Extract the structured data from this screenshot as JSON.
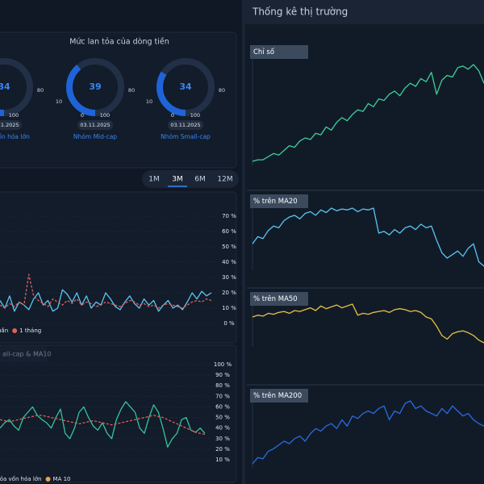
{
  "left": {
    "flow_panel": {
      "title": "Mức lan tỏa của dòng tiền",
      "gauges": [
        {
          "value": 34,
          "low": 10,
          "high": 80,
          "min": 0,
          "max": 100,
          "date": "03.11.2025",
          "name": "hóm Vốn hóa lớn"
        },
        {
          "value": 39,
          "low": 10,
          "high": 80,
          "min": 0,
          "max": 100,
          "date": "03.11.2025",
          "name": "Nhóm Mid-cap"
        },
        {
          "value": 34,
          "low": 10,
          "high": 80,
          "min": 0,
          "max": 100,
          "date": "03.11.2025",
          "name": "Nhóm Small-cap"
        }
      ]
    },
    "periods": {
      "options": [
        "1M",
        "3M",
        "6M",
        "12M"
      ],
      "active": 1
    },
    "breadth_chart": {
      "type": "line",
      "series": [
        {
          "name": "uần",
          "color": "#5cc6f2",
          "dashed": false,
          "values": [
            15,
            10,
            18,
            8,
            14,
            12,
            9,
            16,
            20,
            12,
            15,
            8,
            10,
            22,
            19,
            14,
            20,
            12,
            18,
            10,
            14,
            12,
            20,
            16,
            11,
            9,
            14,
            18,
            13,
            10,
            16,
            12,
            15,
            8,
            12,
            15,
            10,
            12,
            9,
            14,
            20,
            16,
            21,
            18,
            20
          ]
        },
        {
          "name": "1 tháng",
          "color": "#e0605a",
          "dashed": true,
          "values": [
            12,
            10,
            13,
            11,
            14,
            12,
            32,
            18,
            15,
            13,
            11,
            16,
            14,
            12,
            15,
            13,
            16,
            12,
            14,
            13,
            11,
            12,
            14,
            13,
            12,
            11,
            13,
            15,
            14,
            12,
            13,
            11,
            12,
            10,
            12,
            13,
            12,
            11,
            10,
            12,
            14,
            15,
            14,
            16,
            15
          ]
        }
      ],
      "ylim": [
        0,
        70
      ],
      "yticks": [
        {
          "value": 0,
          "label": "0 %"
        },
        {
          "value": 10,
          "label": "10 %"
        },
        {
          "value": 20,
          "label": "20 %"
        },
        {
          "value": 30,
          "label": "30 %"
        },
        {
          "value": 40,
          "label": "40 %"
        },
        {
          "value": 50,
          "label": "50 %"
        },
        {
          "value": 60,
          "label": "60 %"
        },
        {
          "value": 70,
          "label": "70 %"
        }
      ],
      "grid": true
    },
    "cap_chart": {
      "tab": "all-cap & MA10",
      "type": "line",
      "series": [
        {
          "name": "tỏa vốn hóa lớn",
          "color": "#35c49a",
          "dashed": false,
          "values": [
            40,
            45,
            48,
            42,
            38,
            50,
            55,
            60,
            52,
            48,
            45,
            40,
            50,
            58,
            35,
            30,
            40,
            55,
            60,
            50,
            42,
            38,
            45,
            35,
            30,
            48,
            58,
            65,
            60,
            55,
            40,
            35,
            50,
            62,
            55,
            40,
            22,
            30,
            35,
            48,
            50,
            38,
            36,
            40,
            35
          ]
        },
        {
          "name": "MA 10",
          "color": "#e0605a",
          "dot_color": "#f0a050",
          "dashed": true,
          "values": [
            48,
            47,
            46,
            47,
            48,
            49,
            50,
            51,
            52,
            52,
            51,
            50,
            49,
            48,
            47,
            46,
            45,
            44,
            45,
            46,
            47,
            46,
            45,
            44,
            43,
            44,
            45,
            46,
            47,
            48,
            49,
            50,
            51,
            52,
            51,
            50,
            48,
            46,
            44,
            42,
            40,
            38,
            36,
            35,
            34
          ]
        }
      ],
      "ylim": [
        10,
        100
      ],
      "yticks": [
        {
          "value": 10,
          "label": "10 %"
        },
        {
          "value": 20,
          "label": "20 %"
        },
        {
          "value": 30,
          "label": "30 %"
        },
        {
          "value": 40,
          "label": "40 %"
        },
        {
          "value": 50,
          "label": "50 %"
        },
        {
          "value": 60,
          "label": "60 %"
        },
        {
          "value": 70,
          "label": "70 %"
        },
        {
          "value": 80,
          "label": "80 %"
        },
        {
          "value": 90,
          "label": "90 %"
        },
        {
          "value": 100,
          "label": "100 %"
        }
      ],
      "grid": true
    }
  },
  "right": {
    "title": "Thống kê thị trường",
    "charts": [
      {
        "label": "Chỉ số",
        "type": "line",
        "color": "#3fcf95",
        "values": [
          5,
          6,
          6,
          8,
          10,
          9,
          12,
          15,
          14,
          18,
          20,
          19,
          23,
          22,
          27,
          25,
          30,
          33,
          31,
          35,
          38,
          37,
          42,
          40,
          45,
          44,
          48,
          50,
          47,
          52,
          55,
          53,
          58,
          56,
          62,
          48,
          57,
          60,
          59,
          65,
          66,
          64,
          67,
          63,
          55
        ]
      },
      {
        "label": "% trên MA20",
        "type": "line",
        "color": "#5cc6f2",
        "values": [
          40,
          48,
          46,
          55,
          60,
          58,
          66,
          70,
          72,
          68,
          74,
          76,
          72,
          78,
          75,
          80,
          77,
          79,
          78,
          80,
          76,
          79,
          78,
          80,
          52,
          54,
          50,
          56,
          52,
          58,
          60,
          56,
          62,
          58,
          60,
          44,
          30,
          24,
          28,
          32,
          26,
          35,
          40,
          20,
          15
        ]
      },
      {
        "label": "% trên MA50",
        "type": "line",
        "color": "#e8c040",
        "values": [
          60,
          62,
          61,
          64,
          63,
          65,
          66,
          64,
          67,
          66,
          68,
          70,
          67,
          72,
          69,
          71,
          73,
          70,
          72,
          74,
          62,
          64,
          63,
          65,
          66,
          67,
          65,
          68,
          69,
          68,
          66,
          67,
          65,
          60,
          58,
          50,
          40,
          36,
          42,
          44,
          45,
          43,
          40,
          35,
          32
        ]
      },
      {
        "label": "% trên MA200",
        "type": "line",
        "color": "#2a6be0",
        "values": [
          20,
          25,
          24,
          30,
          32,
          35,
          38,
          36,
          40,
          42,
          38,
          44,
          48,
          46,
          50,
          52,
          48,
          55,
          50,
          58,
          56,
          60,
          62,
          60,
          64,
          66,
          55,
          62,
          60,
          68,
          70,
          64,
          66,
          62,
          60,
          58,
          64,
          60,
          66,
          62,
          58,
          60,
          55,
          52,
          50
        ]
      }
    ]
  }
}
